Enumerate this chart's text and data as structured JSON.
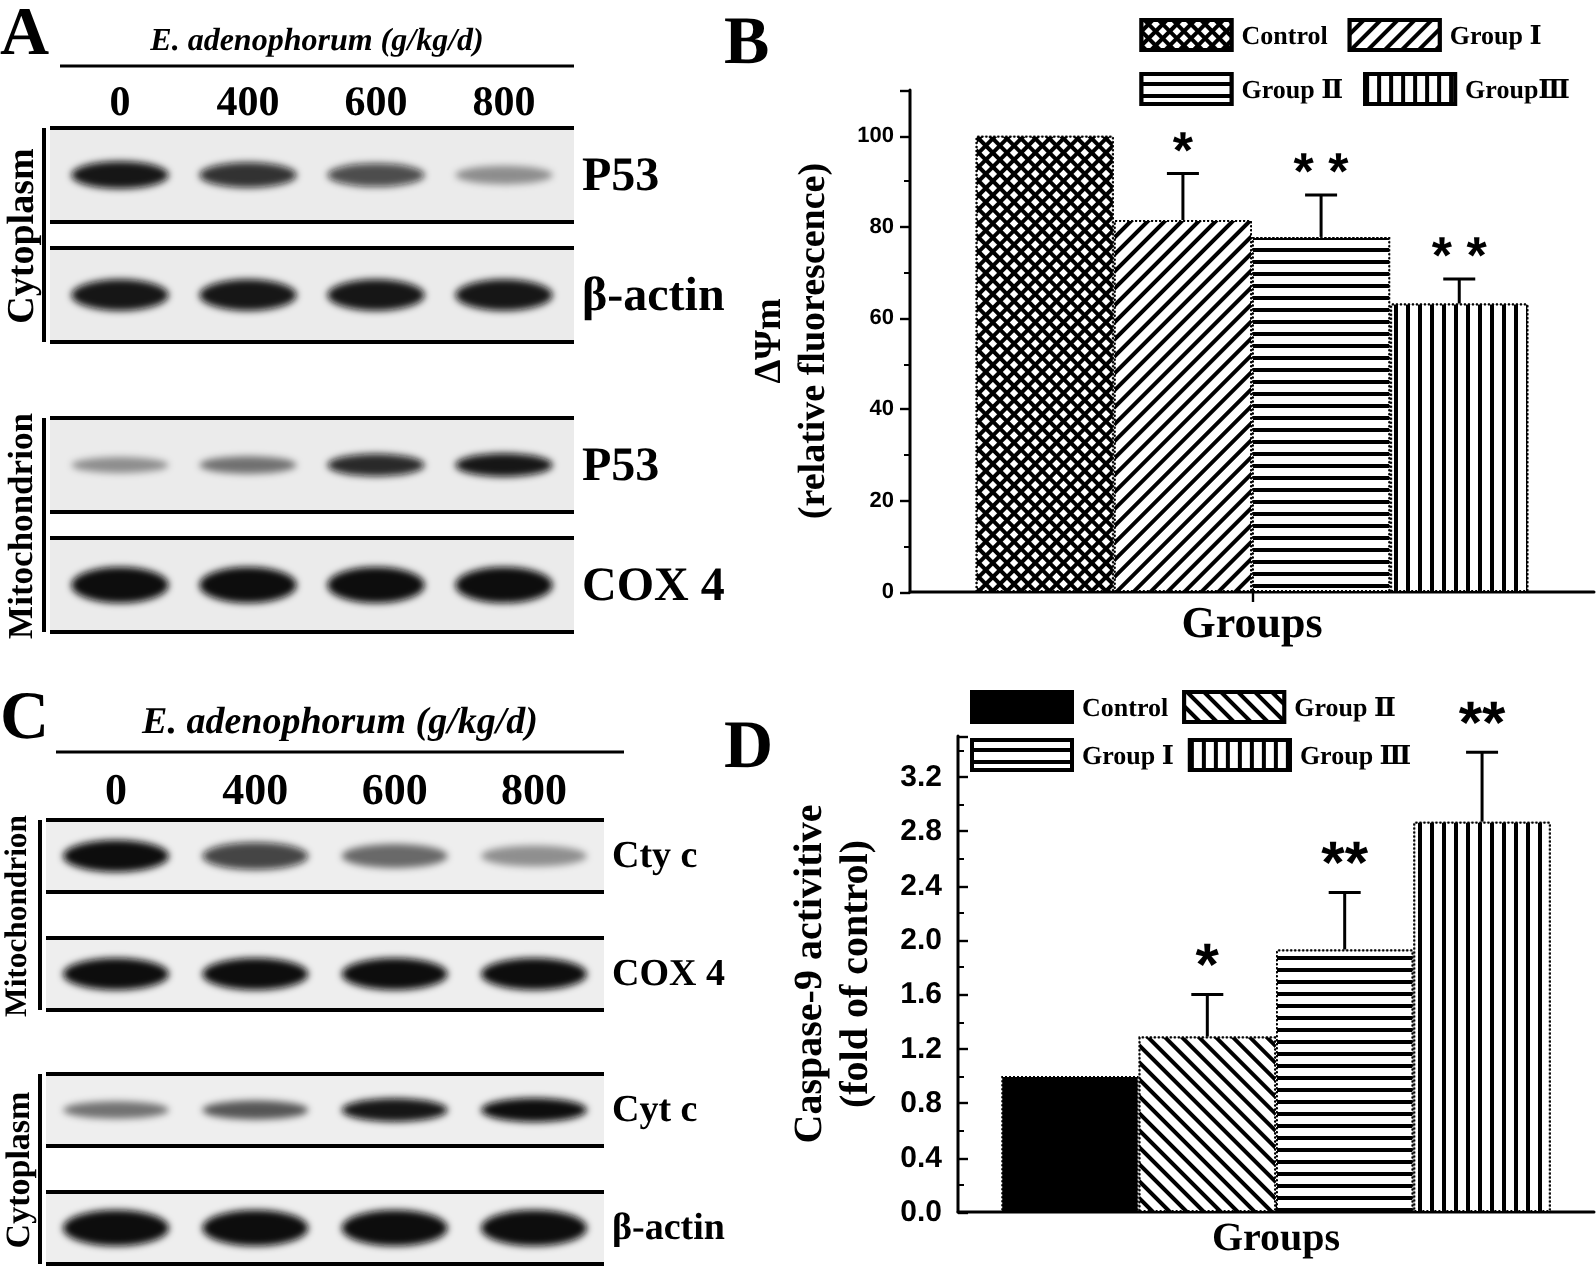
{
  "chart_data": [
    {
      "type": "other",
      "title": "A",
      "subtitle": "E. adenophorum (g/kg/d)",
      "categories": [
        "0",
        "400",
        "600",
        "800"
      ],
      "y_categories": [
        "P53",
        "β-actin",
        "P53",
        "COX 4"
      ],
      "annotations": [
        "Cytoplasm",
        "Mitochondrion"
      ]
    },
    {
      "type": "bar",
      "title": "B",
      "xlabel": "Groups",
      "ylabel": "ΔΨm\n(relative fluorescence)",
      "categories": [
        null
      ],
      "series": [
        {
          "name": "Control",
          "color": "#000000",
          "values": [
            100
          ]
        },
        {
          "name": "Group Ⅰ",
          "color": "#000000",
          "values": [
            81.5
          ],
          "errors": [
            [
              81.5,
              91.7
            ]
          ],
          "value_labels": [
            "*"
          ]
        },
        {
          "name": "Group Ⅱ",
          "color": "#000000",
          "values": [
            77.8
          ],
          "errors": [
            [
              77.8,
              87
            ]
          ],
          "value_labels": [
            "* *"
          ]
        },
        {
          "name": "GroupⅢ",
          "color": "#000000",
          "values": [
            63.2
          ],
          "errors": [
            [
              63.2,
              68.6
            ]
          ],
          "value_labels": [
            "* *"
          ]
        }
      ],
      "ylim": [
        0,
        110
      ],
      "yticks": [
        0,
        20,
        40,
        60,
        80,
        100
      ],
      "legend": "top right",
      "tick_labels": "y"
    },
    {
      "type": "other",
      "title": "C",
      "subtitle": "E. adenophorum (g/kg/d)",
      "categories": [
        "0",
        "400",
        "600",
        "800"
      ],
      "y_categories": [
        "Cty c",
        "COX 4",
        "Cyt c",
        "β-actin"
      ],
      "annotations": [
        "Mitochondrion",
        "Cytoplasm"
      ]
    },
    {
      "type": "bar",
      "title": "D",
      "xlabel": "Groups",
      "ylabel": "Caspase-9 activitive\n(fold of control)",
      "categories": [
        null
      ],
      "series": [
        {
          "name": "Control",
          "color": "#000000",
          "values": [
            1
          ]
        },
        {
          "name": "Group Ⅱ",
          "color": "#000000",
          "values": [
            1.29
          ],
          "errors": [
            [
              1.29,
              1.6
            ]
          ],
          "value_labels": [
            "*"
          ]
        },
        {
          "name": "Group Ⅰ",
          "color": "#000000",
          "values": [
            1.93
          ],
          "errors": [
            [
              1.93,
              2.35
            ]
          ],
          "value_labels": [
            "**"
          ]
        },
        {
          "name": "Group Ⅲ",
          "color": "#000000",
          "values": [
            2.87
          ],
          "errors": [
            [
              2.87,
              3.38
            ]
          ],
          "value_labels": [
            "**"
          ]
        }
      ],
      "ylim": [
        0,
        3.5
      ],
      "yticks": [
        {
          "value": 0,
          "label": "0.0"
        },
        0.4,
        0.8,
        1.2,
        1.6,
        {
          "value": 2,
          "label": "2.0"
        },
        2.4,
        2.8,
        3.2
      ],
      "legend": "top left",
      "tick_labels": "y"
    }
  ]
}
